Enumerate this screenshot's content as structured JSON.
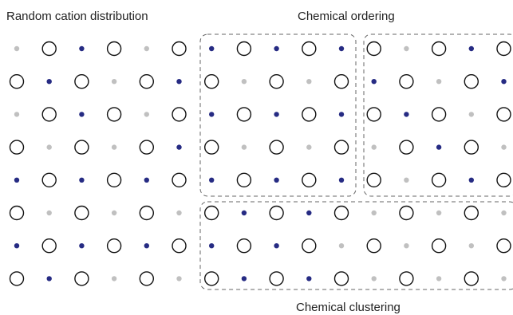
{
  "labels": {
    "random": "Random cation distribution",
    "ordering": "Chemical ordering",
    "clustering": "Chemical clustering"
  },
  "colors": {
    "dark": "#262b83",
    "light": "#c0c0c0",
    "ring": "#111111",
    "box": "#666666"
  },
  "legend_codes": {
    "O": "open circle (anion site)",
    "d": "dark blue dot",
    "g": "light grey dot"
  },
  "grid": [
    [
      "g",
      "O",
      "d",
      "O",
      "g",
      "O",
      "d",
      "O",
      "d",
      "O",
      "d",
      "O",
      "g",
      "O",
      "d",
      "O"
    ],
    [
      "O",
      "d",
      "O",
      "g",
      "O",
      "d",
      "O",
      "g",
      "O",
      "g",
      "O",
      "d",
      "O",
      "g",
      "O",
      "d"
    ],
    [
      "g",
      "O",
      "d",
      "O",
      "g",
      "O",
      "d",
      "O",
      "d",
      "O",
      "d",
      "O",
      "d",
      "O",
      "g",
      "O"
    ],
    [
      "O",
      "g",
      "O",
      "g",
      "O",
      "d",
      "O",
      "g",
      "O",
      "g",
      "O",
      "g",
      "O",
      "d",
      "O",
      "g"
    ],
    [
      "d",
      "O",
      "d",
      "O",
      "d",
      "O",
      "d",
      "O",
      "d",
      "O",
      "d",
      "O",
      "g",
      "O",
      "d",
      "O"
    ],
    [
      "O",
      "g",
      "O",
      "g",
      "O",
      "g",
      "O",
      "d",
      "O",
      "d",
      "O",
      "g",
      "O",
      "g",
      "O",
      "g"
    ],
    [
      "d",
      "O",
      "d",
      "O",
      "d",
      "O",
      "d",
      "O",
      "d",
      "O",
      "g",
      "O",
      "g",
      "O",
      "g",
      "O"
    ],
    [
      "O",
      "d",
      "O",
      "g",
      "O",
      "g",
      "O",
      "d",
      "O",
      "d",
      "O",
      "g",
      "O",
      "g",
      "O",
      "g"
    ]
  ]
}
